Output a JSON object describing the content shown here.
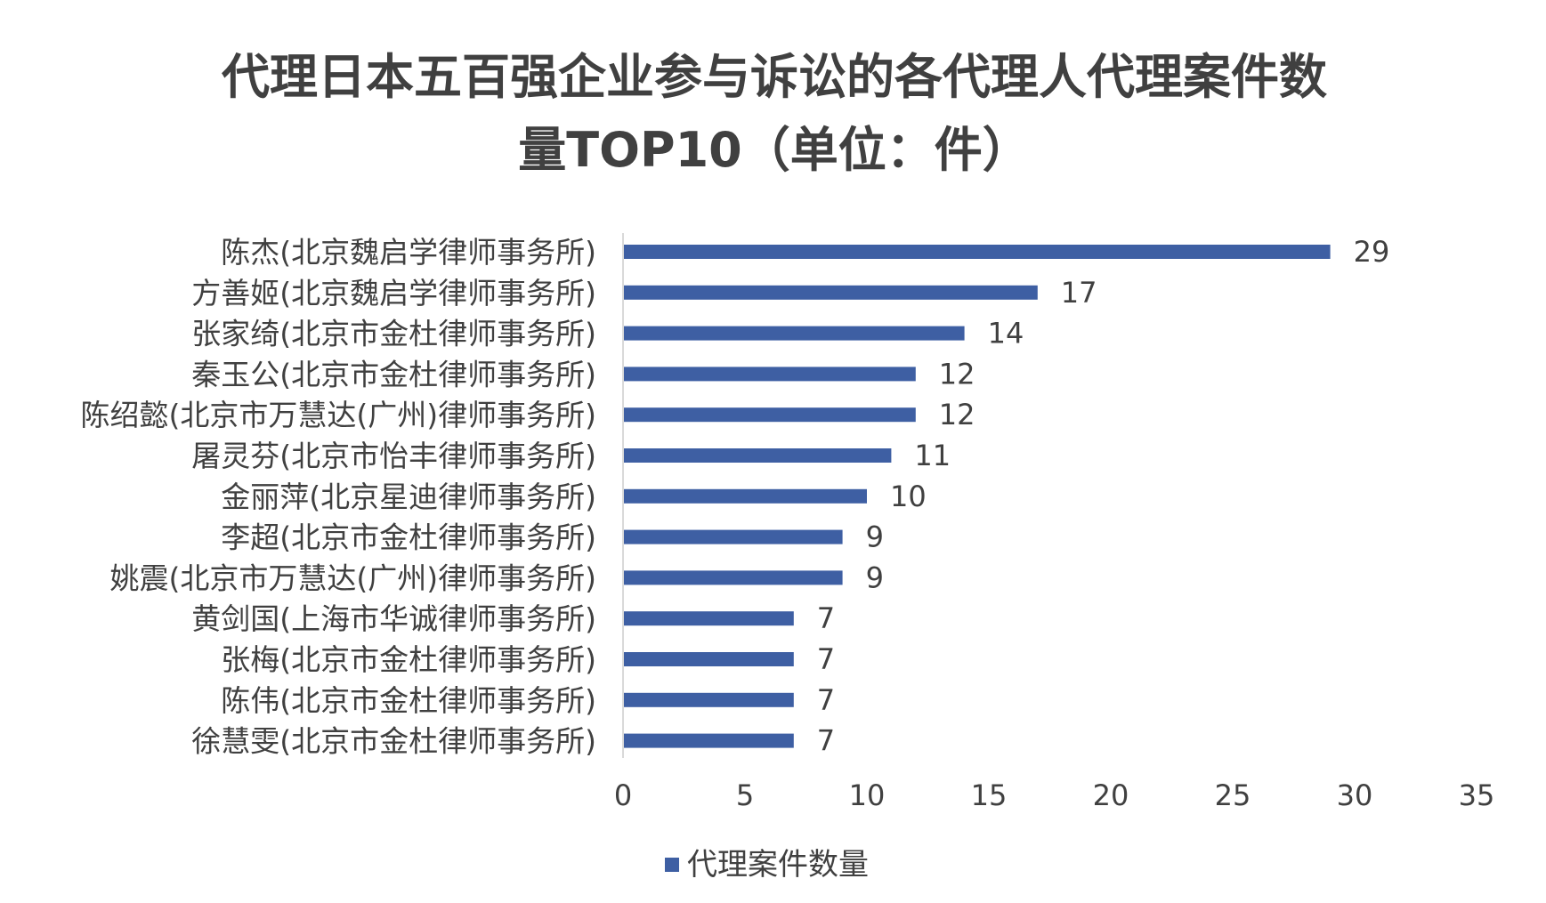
{
  "chart_data": {
    "type": "bar",
    "orientation": "horizontal",
    "title_lines": [
      "代理日本五百强企业参与诉讼的各代理人代理案件数",
      "量TOP10（单位：件）"
    ],
    "categories": [
      "陈杰(北京魏启学律师事务所)",
      "方善姬(北京魏启学律师事务所)",
      "张家绮(北京市金杜律师事务所)",
      "秦玉公(北京市金杜律师事务所)",
      "陈绍懿(北京市万慧达(广州)律师事务所)",
      "屠灵芬(北京市怡丰律师事务所)",
      "金丽萍(北京星迪律师事务所)",
      "李超(北京市金杜律师事务所)",
      "姚震(北京市万慧达(广州)律师事务所)",
      "黄剑国(上海市华诚律师事务所)",
      "张梅(北京市金杜律师事务所)",
      "陈伟(北京市金杜律师事务所)",
      "徐慧雯(北京市金杜律师事务所)"
    ],
    "series": [
      {
        "name": "代理案件数量",
        "values": [
          29,
          17,
          14,
          12,
          12,
          11,
          10,
          9,
          9,
          7,
          7,
          7,
          7
        ]
      }
    ],
    "xlim": [
      0,
      35
    ],
    "xticks": [
      0,
      5,
      10,
      15,
      20,
      25,
      30,
      35
    ],
    "grid": false,
    "legend_position": "bottom",
    "bar_color": "#3e5fa3",
    "text_color": "#404040"
  }
}
